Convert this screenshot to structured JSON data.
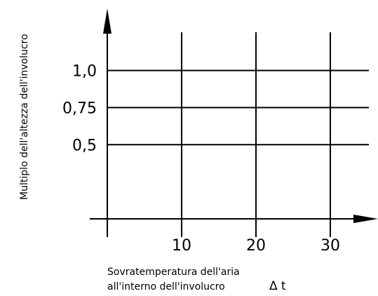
{
  "chart_data": {
    "type": "line",
    "title": "",
    "ylabel": "Multiplo dell'altezza dell'involucro",
    "xlabel_lines": [
      "Sovratemperatura dell'aria",
      "all'interno dell'involucro"
    ],
    "xlabel_symbol": "Δ t",
    "x_ticks": [
      {
        "value": 10,
        "label": "10"
      },
      {
        "value": 20,
        "label": "20"
      },
      {
        "value": 30,
        "label": "30"
      }
    ],
    "y_ticks": [
      {
        "value": 0.5,
        "label": "0,5"
      },
      {
        "value": 0.75,
        "label": "0,75"
      },
      {
        "value": 1.0,
        "label": "1,0"
      }
    ],
    "xlim": [
      0,
      35
    ],
    "ylim": [
      0,
      1.5
    ],
    "grid": true
  }
}
